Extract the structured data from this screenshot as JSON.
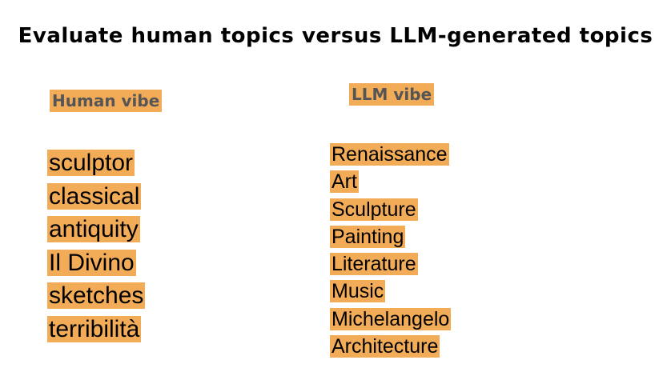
{
  "slide": {
    "title": "Evaluate human topics versus LLM-generated topics"
  },
  "human_column": {
    "label": "Human vibe",
    "words": [
      "sculptor",
      "classical",
      "antiquity",
      "Il Divino",
      "sketches",
      "terribilità"
    ]
  },
  "llm_column": {
    "label": "LLM vibe",
    "words": [
      "Renaissance",
      "Art",
      "Sculpture",
      "Painting",
      "Literature",
      "Music",
      "Michelangelo",
      "Architecture"
    ]
  },
  "colors": {
    "highlight": "#f2ac57",
    "label_text": "#555555",
    "text": "#000000",
    "background": "#ffffff"
  }
}
